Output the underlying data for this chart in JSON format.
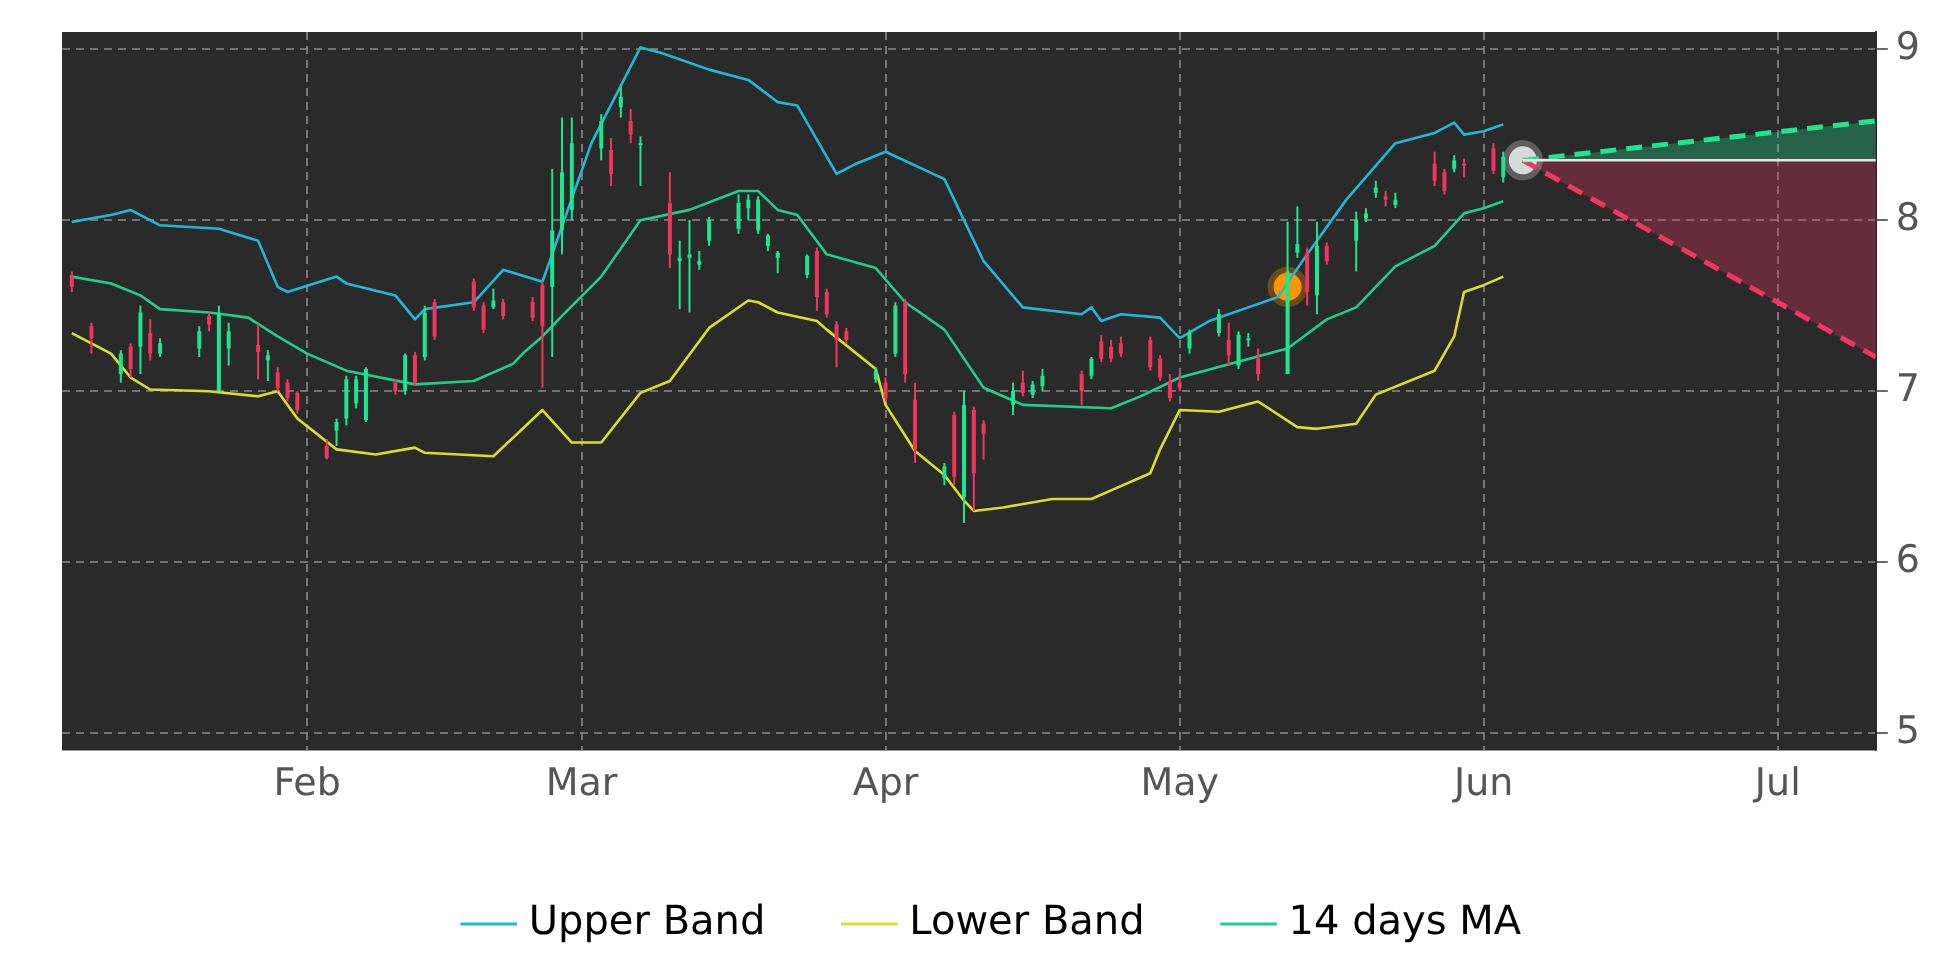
{
  "chart_data": {
    "type": "candlestick",
    "x": [
      "--01-08",
      "--01-10",
      "--01-13",
      "--01-14",
      "--01-15",
      "--01-16",
      "--01-17",
      "--01-21",
      "--01-22",
      "--01-23",
      "--01-24",
      "--01-27",
      "--01-28",
      "--01-29",
      "--01-30",
      "--01-31",
      "--02-03",
      "--02-04",
      "--02-05",
      "--02-06",
      "--02-07",
      "--02-10",
      "--02-11",
      "--02-12",
      "--02-13",
      "--02-14",
      "--02-18",
      "--02-19",
      "--02-20",
      "--02-21",
      "--02-24",
      "--02-25",
      "--02-26",
      "--02-27",
      "--02-28",
      "--03-03",
      "--03-04",
      "--03-05",
      "--03-06",
      "--03-07",
      "--03-10",
      "--03-11",
      "--03-12",
      "--03-13",
      "--03-14",
      "--03-17",
      "--03-18",
      "--03-19",
      "--03-20",
      "--03-21",
      "--03-24",
      "--03-25",
      "--03-26",
      "--03-27",
      "--03-28",
      "--03-31",
      "--04-01",
      "--04-02",
      "--04-03",
      "--04-04",
      "--04-07",
      "--04-08",
      "--04-09",
      "--04-10",
      "--04-11",
      "--04-14",
      "--04-15",
      "--04-16",
      "--04-17",
      "--04-21",
      "--04-22",
      "--04-23",
      "--04-24",
      "--04-25",
      "--04-28",
      "--04-29",
      "--04-30",
      "--05-01",
      "--05-02",
      "--05-05",
      "--05-06",
      "--05-07",
      "--05-08",
      "--05-09",
      "--05-12",
      "--05-13",
      "--05-14",
      "--05-15",
      "--05-16",
      "--05-19",
      "--05-20",
      "--05-21",
      "--05-22",
      "--05-23",
      "--05-27",
      "--05-28",
      "--05-29",
      "--05-30",
      "--06-02",
      "--06-03"
    ],
    "ohlc": [
      [
        7.68,
        7.7,
        7.58,
        7.61
      ],
      [
        7.38,
        7.4,
        7.22,
        7.31
      ],
      [
        7.1,
        7.24,
        7.05,
        7.22
      ],
      [
        7.26,
        7.28,
        7.08,
        7.13
      ],
      [
        7.26,
        7.5,
        7.1,
        7.46
      ],
      [
        7.34,
        7.42,
        7.18,
        7.22
      ],
      [
        7.22,
        7.31,
        7.2,
        7.28
      ],
      [
        7.25,
        7.38,
        7.2,
        7.35
      ],
      [
        7.44,
        7.46,
        7.35,
        7.39
      ],
      [
        7.0,
        7.5,
        7.0,
        7.46
      ],
      [
        7.25,
        7.4,
        7.15,
        7.35
      ],
      [
        7.27,
        7.39,
        7.07,
        7.23
      ],
      [
        7.18,
        7.24,
        7.06,
        7.21
      ],
      [
        7.11,
        7.14,
        7.0,
        7.02
      ],
      [
        7.05,
        7.07,
        6.94,
        6.96
      ],
      [
        6.99,
        7.0,
        6.87,
        6.89
      ],
      [
        6.68,
        6.72,
        6.6,
        6.61
      ],
      [
        6.77,
        6.84,
        6.68,
        6.82
      ],
      [
        6.84,
        7.09,
        6.8,
        7.07
      ],
      [
        6.93,
        7.09,
        6.9,
        7.07
      ],
      [
        6.83,
        7.14,
        6.82,
        7.13
      ],
      [
        7.05,
        7.07,
        6.98,
        7.0
      ],
      [
        7.0,
        7.22,
        6.98,
        7.21
      ],
      [
        7.21,
        7.23,
        7.03,
        7.05
      ],
      [
        7.2,
        7.5,
        7.18,
        7.46
      ],
      [
        7.52,
        7.54,
        7.3,
        7.32
      ],
      [
        7.64,
        7.66,
        7.47,
        7.49
      ],
      [
        7.5,
        7.52,
        7.34,
        7.36
      ],
      [
        7.49,
        7.6,
        7.48,
        7.53
      ],
      [
        7.52,
        7.54,
        7.42,
        7.44
      ],
      [
        7.52,
        7.55,
        7.41,
        7.43
      ],
      [
        7.62,
        7.64,
        7.02,
        7.38
      ],
      [
        7.61,
        8.3,
        7.2,
        7.94
      ],
      [
        7.94,
        8.6,
        7.8,
        8.28
      ],
      [
        8.06,
        8.6,
        8.0,
        8.45
      ],
      [
        8.42,
        8.62,
        8.35,
        8.58
      ],
      [
        8.41,
        8.48,
        8.2,
        8.27
      ],
      [
        8.66,
        8.78,
        8.6,
        8.72
      ],
      [
        8.58,
        8.65,
        8.45,
        8.5
      ],
      [
        8.44,
        8.49,
        8.2,
        8.45
      ],
      [
        8.1,
        8.28,
        7.72,
        7.8
      ],
      [
        7.76,
        7.88,
        7.48,
        7.78
      ],
      [
        7.78,
        8.0,
        7.46,
        7.8
      ],
      [
        7.74,
        7.82,
        7.71,
        7.76
      ],
      [
        7.88,
        8.02,
        7.85,
        8.0
      ],
      [
        7.95,
        8.15,
        7.92,
        8.1
      ],
      [
        8.07,
        8.15,
        8.0,
        8.12
      ],
      [
        7.94,
        8.14,
        7.92,
        8.12
      ],
      [
        7.85,
        7.92,
        7.82,
        7.91
      ],
      [
        7.78,
        7.82,
        7.69,
        7.81
      ],
      [
        7.68,
        7.8,
        7.66,
        7.79
      ],
      [
        7.82,
        7.84,
        7.47,
        7.55
      ],
      [
        7.58,
        7.6,
        7.43,
        7.45
      ],
      [
        7.39,
        7.41,
        7.14,
        7.3
      ],
      [
        7.35,
        7.37,
        7.28,
        7.3
      ],
      [
        7.07,
        7.14,
        7.05,
        7.12
      ],
      [
        7.05,
        7.08,
        6.94,
        6.96
      ],
      [
        7.22,
        7.52,
        7.2,
        7.5
      ],
      [
        7.52,
        7.54,
        7.05,
        7.1
      ],
      [
        6.95,
        7.05,
        6.58,
        6.66
      ],
      [
        6.49,
        6.58,
        6.45,
        6.56
      ],
      [
        6.86,
        6.88,
        6.45,
        6.5
      ],
      [
        6.38,
        7.0,
        6.23,
        6.92
      ],
      [
        6.89,
        6.91,
        6.3,
        6.52
      ],
      [
        6.81,
        6.83,
        6.6,
        6.75
      ],
      [
        6.92,
        7.05,
        6.86,
        7.0
      ],
      [
        7.05,
        7.12,
        6.97,
        6.99
      ],
      [
        6.98,
        7.06,
        6.96,
        7.04
      ],
      [
        7.03,
        7.13,
        7.0,
        7.09
      ],
      [
        7.1,
        7.12,
        6.92,
        7.0
      ],
      [
        7.09,
        7.2,
        7.07,
        7.19
      ],
      [
        7.29,
        7.33,
        7.17,
        7.19
      ],
      [
        7.26,
        7.3,
        7.17,
        7.19
      ],
      [
        7.28,
        7.32,
        7.2,
        7.22
      ],
      [
        7.3,
        7.32,
        7.12,
        7.14
      ],
      [
        7.19,
        7.21,
        7.06,
        7.08
      ],
      [
        7.06,
        7.1,
        6.94,
        6.96
      ],
      [
        7.05,
        7.1,
        7.0,
        7.02
      ],
      [
        7.25,
        7.36,
        7.22,
        7.34
      ],
      [
        7.34,
        7.48,
        7.32,
        7.45
      ],
      [
        7.3,
        7.4,
        7.15,
        7.21
      ],
      [
        7.15,
        7.35,
        7.13,
        7.33
      ],
      [
        7.3,
        7.34,
        7.26,
        7.31
      ],
      [
        7.19,
        7.25,
        7.06,
        7.1
      ],
      [
        7.1,
        7.99,
        7.1,
        7.7
      ],
      [
        7.81,
        8.08,
        7.78,
        7.86
      ],
      [
        7.81,
        7.84,
        7.5,
        7.58
      ],
      [
        7.56,
        7.99,
        7.45,
        7.85
      ],
      [
        7.85,
        7.87,
        7.74,
        7.76
      ],
      [
        7.88,
        8.05,
        7.7,
        8.0
      ],
      [
        8.01,
        8.07,
        7.99,
        8.04
      ],
      [
        8.16,
        8.23,
        8.13,
        8.19
      ],
      [
        8.14,
        8.17,
        8.08,
        8.12
      ],
      [
        8.09,
        8.16,
        8.07,
        8.12
      ],
      [
        8.33,
        8.4,
        8.2,
        8.23
      ],
      [
        8.28,
        8.3,
        8.15,
        8.17
      ],
      [
        8.3,
        8.38,
        8.28,
        8.35
      ],
      [
        8.32,
        8.36,
        8.25,
        8.33
      ],
      [
        8.42,
        8.45,
        8.27,
        8.29
      ],
      [
        8.25,
        8.4,
        8.22,
        8.37
      ]
    ],
    "colors": [
      "#f0365e",
      "#f0365e",
      "#1ee68f",
      "#f0365e",
      "#1ee68f",
      "#f0365e",
      "#1ee68f",
      "#1ee68f",
      "#f0365e",
      "#1ee68f",
      "#1ee68f",
      "#f0365e",
      "#1ee68f",
      "#f0365e",
      "#f0365e",
      "#f0365e",
      "#f0365e",
      "#1ee68f",
      "#1ee68f",
      "#1ee68f",
      "#1ee68f",
      "#f0365e",
      "#1ee68f",
      "#f0365e",
      "#1ee68f",
      "#f0365e",
      "#f0365e",
      "#f0365e",
      "#1ee68f",
      "#f0365e",
      "#f0365e",
      "#f0365e",
      "#1ee68f",
      "#1ee68f",
      "#1ee68f",
      "#1ee68f",
      "#f0365e",
      "#1ee68f",
      "#f0365e",
      "#1ee68f",
      "#f0365e",
      "#1ee68f",
      "#1ee68f",
      "#1ee68f",
      "#1ee68f",
      "#1ee68f",
      "#1ee68f",
      "#1ee68f",
      "#1ee68f",
      "#1ee68f",
      "#1ee68f",
      "#f0365e",
      "#f0365e",
      "#f0365e",
      "#f0365e",
      "#1ee68f",
      "#f0365e",
      "#1ee68f",
      "#f0365e",
      "#f0365e",
      "#1ee68f",
      "#f0365e",
      "#1ee68f",
      "#f0365e",
      "#f0365e",
      "#1ee68f",
      "#f0365e",
      "#1ee68f",
      "#1ee68f",
      "#f0365e",
      "#1ee68f",
      "#f0365e",
      "#f0365e",
      "#f0365e",
      "#f0365e",
      "#f0365e",
      "#f0365e",
      "#f0365e",
      "#1ee68f",
      "#1ee68f",
      "#f0365e",
      "#1ee68f",
      "#1ee68f",
      "#f0365e",
      "#1ee68f",
      "#1ee68f",
      "#f0365e",
      "#1ee68f",
      "#f0365e",
      "#1ee68f",
      "#1ee68f",
      "#1ee68f",
      "#f0365e",
      "#1ee68f",
      "#f0365e",
      "#f0365e",
      "#1ee68f",
      "#f0365e",
      "#f0365e",
      "#1ee68f"
    ],
    "series": [
      {
        "type": "line",
        "name": "Upper Band",
        "color": "#1fb8d8",
        "x": [
          "--01-08",
          "--01-12",
          "--01-14",
          "--01-17",
          "--01-23",
          "--01-27",
          "--01-29",
          "--01-30",
          "--02-04",
          "--02-05",
          "--02-10",
          "--02-12",
          "--02-13",
          "--02-18",
          "--02-21",
          "--02-25",
          "--03-02",
          "--03-07",
          "--03-09",
          "--03-14",
          "--03-18",
          "--03-21",
          "--03-23",
          "--03-27",
          "--03-29",
          "--04-01",
          "--04-07",
          "--04-11",
          "--04-15",
          "--04-21",
          "--04-22",
          "--04-23",
          "--04-25",
          "--04-29",
          "--05-01",
          "--05-04",
          "--05-08",
          "--05-11",
          "--05-14",
          "--05-18",
          "--05-23",
          "--05-27",
          "--05-29",
          "--05-30",
          "--06-01",
          "--06-03"
        ],
        "values": [
          7.99,
          8.03,
          8.06,
          7.97,
          7.95,
          7.88,
          7.61,
          7.58,
          7.67,
          7.63,
          7.56,
          7.42,
          7.48,
          7.52,
          7.71,
          7.64,
          8.45,
          9.01,
          8.98,
          8.88,
          8.82,
          8.69,
          8.67,
          8.27,
          8.33,
          8.4,
          8.24,
          7.76,
          7.49,
          7.45,
          7.49,
          7.41,
          7.45,
          7.43,
          7.31,
          7.41,
          7.49,
          7.55,
          7.8,
          8.12,
          8.45,
          8.51,
          8.57,
          8.5,
          8.52,
          8.56
        ]
      },
      {
        "type": "line",
        "name": "Lower Band",
        "color": "#d6e02c",
        "x": [
          "--01-08",
          "--01-12",
          "--01-14",
          "--01-16",
          "--01-22",
          "--01-27",
          "--01-29",
          "--01-31",
          "--02-04",
          "--02-08",
          "--02-12",
          "--02-13",
          "--02-20",
          "--02-25",
          "--02-28",
          "--03-03",
          "--03-07",
          "--03-10",
          "--03-14",
          "--03-18",
          "--03-19",
          "--03-21",
          "--03-25",
          "--03-26",
          "--03-31",
          "--04-01",
          "--04-04",
          "--04-07",
          "--04-09",
          "--04-10",
          "--04-13",
          "--04-18",
          "--04-22",
          "--04-24",
          "--04-28",
          "--04-29",
          "--05-01",
          "--05-05",
          "--05-09",
          "--05-13",
          "--05-15",
          "--05-19",
          "--05-21",
          "--05-27",
          "--05-29",
          "--05-30",
          "--06-01",
          "--06-03"
        ],
        "values": [
          7.34,
          7.22,
          7.08,
          7.01,
          7.0,
          6.97,
          7.0,
          6.84,
          6.66,
          6.63,
          6.67,
          6.64,
          6.62,
          6.89,
          6.7,
          6.7,
          6.99,
          7.06,
          7.37,
          7.53,
          7.52,
          7.46,
          7.41,
          7.36,
          7.13,
          6.92,
          6.65,
          6.51,
          6.36,
          6.3,
          6.32,
          6.37,
          6.37,
          6.42,
          6.52,
          6.66,
          6.89,
          6.88,
          6.94,
          6.79,
          6.78,
          6.81,
          6.98,
          7.12,
          7.32,
          7.58,
          7.62,
          7.67
        ]
      },
      {
        "type": "line",
        "name": "14 days MA",
        "color": "#1ecf8c",
        "x": [
          "--01-08",
          "--01-12",
          "--01-15",
          "--01-17",
          "--01-22",
          "--01-26",
          "--01-29",
          "--02-01",
          "--02-05",
          "--02-12",
          "--02-18",
          "--02-22",
          "--02-23",
          "--02-25",
          "--02-27",
          "--03-03",
          "--03-07",
          "--03-12",
          "--03-17",
          "--03-19",
          "--03-21",
          "--03-23",
          "--03-26",
          "--03-31",
          "--04-03",
          "--04-07",
          "--04-11",
          "--04-15",
          "--04-24",
          "--04-27",
          "--05-01",
          "--05-12",
          "--05-16",
          "--05-19",
          "--05-23",
          "--05-27",
          "--05-30",
          "--06-01",
          "--06-03"
        ],
        "values": [
          7.67,
          7.63,
          7.56,
          7.48,
          7.46,
          7.43,
          7.32,
          7.22,
          7.12,
          7.04,
          7.06,
          7.16,
          7.22,
          7.32,
          7.44,
          7.67,
          8.0,
          8.06,
          8.17,
          8.17,
          8.06,
          8.03,
          7.8,
          7.72,
          7.52,
          7.36,
          7.02,
          6.92,
          6.9,
          6.97,
          7.08,
          7.25,
          7.42,
          7.49,
          7.73,
          7.85,
          8.04,
          8.07,
          8.11
        ]
      },
      {
        "type": "line",
        "color": "#e6e6e6",
        "x": [
          "--06-05",
          "--07-11"
        ],
        "values": [
          8.35,
          8.35
        ]
      },
      {
        "type": "line",
        "color": "#1ee68f",
        "line_style": "dashed",
        "x": [
          "--06-05",
          "--07-11"
        ],
        "values": [
          8.35,
          8.58
        ],
        "lower": [
          8.35,
          8.35
        ],
        "upper": [
          8.35,
          8.58
        ]
      },
      {
        "type": "line",
        "color": "#f0365e",
        "line_style": "dashed",
        "x": [
          "--06-05",
          "--07-11"
        ],
        "values": [
          8.35,
          7.2
        ],
        "lower": [
          8.35,
          7.2
        ],
        "upper": [
          8.35,
          8.35
        ]
      },
      {
        "type": "scatter",
        "color": "#ff9500",
        "marker": "circle",
        "x": [
          "--05-12"
        ],
        "values": [
          7.61
        ]
      },
      {
        "type": "scatter",
        "color": "#d9d9d9",
        "marker": "circle",
        "x": [
          "--06-05"
        ],
        "values": [
          8.35
        ]
      }
    ],
    "xlim": [
      "--01-07",
      "--07-11"
    ],
    "xticks": [
      {
        "value": "--02-01",
        "label": "Feb"
      },
      {
        "value": "--03-01",
        "label": "Mar"
      },
      {
        "value": "--04-01",
        "label": "Apr"
      },
      {
        "value": "--05-01",
        "label": "May"
      },
      {
        "value": "--06-01",
        "label": "Jun"
      },
      {
        "value": "--07-01",
        "label": "Jul"
      }
    ],
    "ylim": [
      4.9,
      9.1
    ],
    "yticks": [
      5,
      6,
      7,
      8,
      9
    ],
    "grid": true,
    "legend": "bottom"
  }
}
